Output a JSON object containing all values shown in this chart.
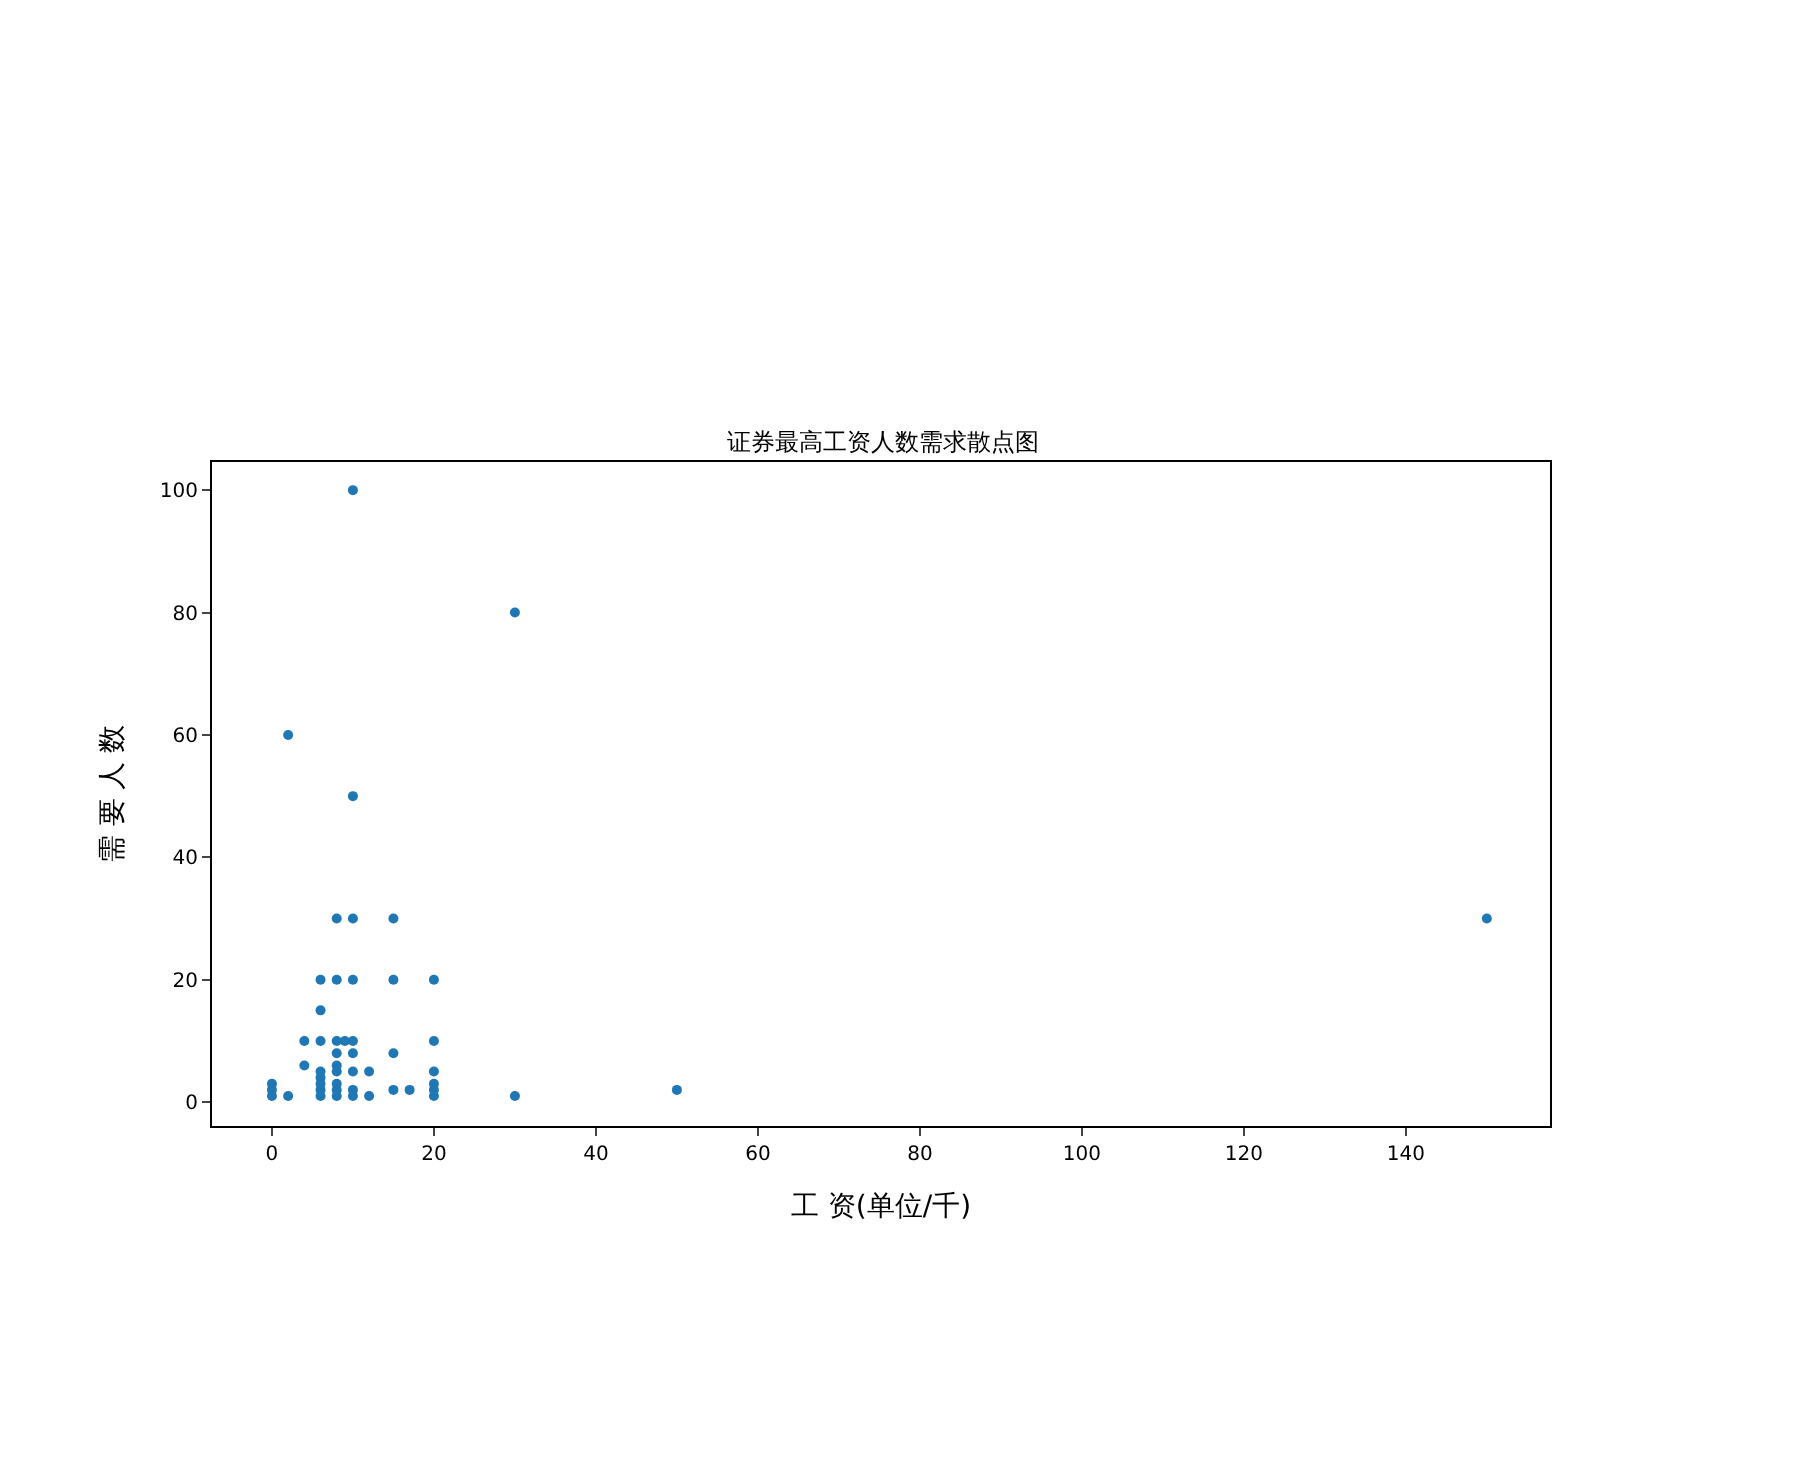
{
  "chart_data": {
    "type": "scatter",
    "title": "证券最高工资人数需求散点图",
    "xlabel": "工 资(单位/千)",
    "ylabel": "需 要 人 数",
    "x": [
      0,
      0,
      0,
      2,
      4,
      4,
      6,
      6,
      6,
      6,
      6,
      6,
      6,
      6,
      8,
      8,
      8,
      8,
      8,
      8,
      8,
      8,
      8,
      9,
      10,
      10,
      10,
      10,
      10,
      10,
      10,
      12,
      12,
      15,
      15,
      15,
      15,
      17,
      20,
      20,
      20,
      20,
      20,
      20,
      30,
      50,
      150,
      10,
      30,
      2,
      10
    ],
    "series": [
      {
        "color": "#1f77b4",
        "values": [
          3,
          2,
          1,
          1,
          10,
          6,
          20,
          15,
          10,
          5,
          4,
          3,
          2,
          1,
          30,
          20,
          10,
          8,
          6,
          5,
          3,
          2,
          1,
          10,
          30,
          20,
          10,
          8,
          5,
          2,
          1,
          5,
          1,
          30,
          20,
          8,
          2,
          2,
          20,
          10,
          5,
          3,
          2,
          1,
          1,
          2,
          30,
          100,
          80,
          60,
          50
        ]
      }
    ],
    "marker": "circle",
    "xlim": [
      -7.4,
      157.8
    ],
    "ylim": [
      -3.9,
      104.6
    ],
    "xticks": [
      0,
      20,
      40,
      60,
      80,
      100,
      120,
      140
    ],
    "yticks": [
      0,
      20,
      40,
      60,
      80,
      100
    ],
    "legend": false
  }
}
